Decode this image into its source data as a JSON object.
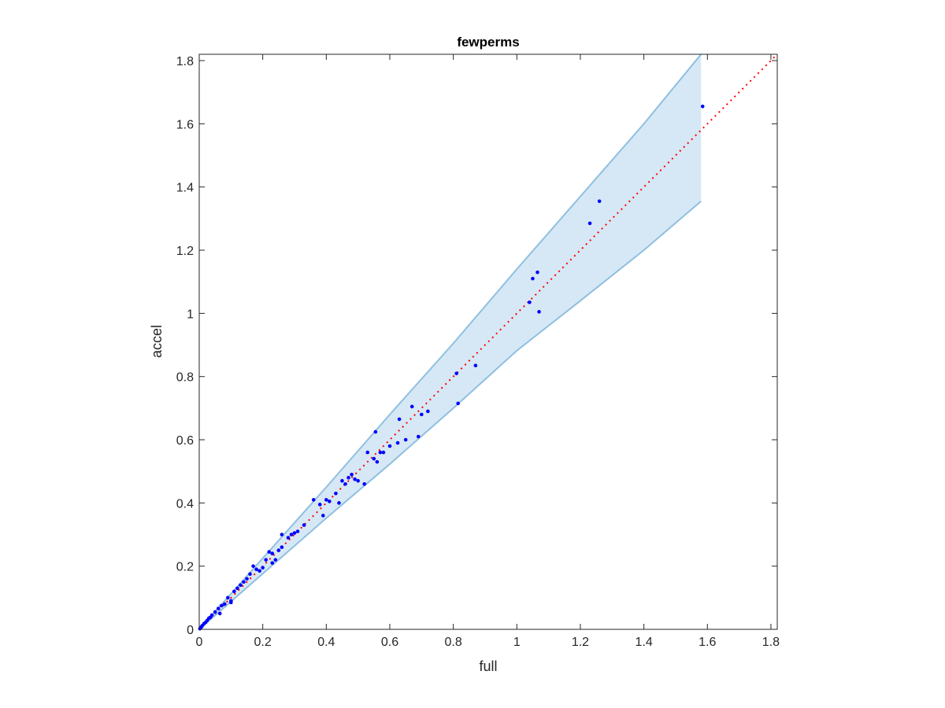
{
  "chart_data": {
    "type": "scatter",
    "title": "fewperms",
    "xlabel": "full",
    "ylabel": "accel",
    "xlim": [
      0,
      1.82
    ],
    "ylim": [
      0,
      1.82
    ],
    "xticks": [
      "0",
      "0.2",
      "0.4",
      "0.6",
      "0.8",
      "1",
      "1.2",
      "1.4",
      "1.6",
      "1.8"
    ],
    "yticks": [
      "0",
      "0.2",
      "0.4",
      "0.6",
      "0.8",
      "1",
      "1.2",
      "1.4",
      "1.6",
      "1.8"
    ],
    "grid": false,
    "colors": {
      "points": "#0000ff",
      "identity_line": "#ff0000",
      "band_fill": "#d6e8f5",
      "band_edge": "#8fbfe0",
      "axes": "#262626"
    },
    "band": {
      "x": [
        0,
        0.2,
        0.4,
        0.6,
        0.8,
        1.0,
        1.2,
        1.4,
        1.58
      ],
      "upper": [
        0,
        0.225,
        0.45,
        0.68,
        0.905,
        1.14,
        1.37,
        1.6,
        1.82
      ],
      "lower": [
        0,
        0.176,
        0.352,
        0.523,
        0.7,
        0.882,
        1.04,
        1.2,
        1.355
      ]
    },
    "identity_line": {
      "x": [
        0,
        1.82
      ],
      "y": [
        0,
        1.82
      ]
    },
    "points": {
      "x": [
        0.002,
        0.005,
        0.008,
        0.01,
        0.015,
        0.02,
        0.025,
        0.03,
        0.035,
        0.04,
        0.05,
        0.06,
        0.065,
        0.07,
        0.08,
        0.09,
        0.1,
        0.1,
        0.11,
        0.12,
        0.13,
        0.14,
        0.15,
        0.16,
        0.17,
        0.18,
        0.19,
        0.2,
        0.21,
        0.22,
        0.23,
        0.23,
        0.24,
        0.25,
        0.26,
        0.26,
        0.28,
        0.29,
        0.3,
        0.31,
        0.33,
        0.36,
        0.38,
        0.39,
        0.4,
        0.41,
        0.43,
        0.44,
        0.45,
        0.46,
        0.47,
        0.48,
        0.49,
        0.5,
        0.52,
        0.53,
        0.55,
        0.555,
        0.56,
        0.57,
        0.58,
        0.6,
        0.625,
        0.63,
        0.65,
        0.67,
        0.69,
        0.7,
        0.72,
        0.81,
        0.815,
        0.87,
        1.04,
        1.05,
        1.065,
        1.07,
        1.23,
        1.26,
        1.585
      ],
      "y": [
        0.002,
        0.006,
        0.009,
        0.012,
        0.018,
        0.022,
        0.028,
        0.035,
        0.038,
        0.045,
        0.055,
        0.066,
        0.05,
        0.075,
        0.08,
        0.1,
        0.09,
        0.085,
        0.12,
        0.13,
        0.14,
        0.15,
        0.16,
        0.175,
        0.2,
        0.19,
        0.185,
        0.195,
        0.22,
        0.245,
        0.21,
        0.24,
        0.22,
        0.25,
        0.26,
        0.3,
        0.29,
        0.3,
        0.305,
        0.31,
        0.33,
        0.41,
        0.395,
        0.36,
        0.41,
        0.405,
        0.43,
        0.4,
        0.47,
        0.46,
        0.48,
        0.49,
        0.475,
        0.47,
        0.46,
        0.56,
        0.54,
        0.625,
        0.53,
        0.56,
        0.56,
        0.58,
        0.59,
        0.665,
        0.6,
        0.705,
        0.61,
        0.68,
        0.69,
        0.81,
        0.715,
        0.835,
        1.035,
        1.11,
        1.13,
        1.005,
        1.285,
        1.355,
        1.655
      ]
    }
  }
}
